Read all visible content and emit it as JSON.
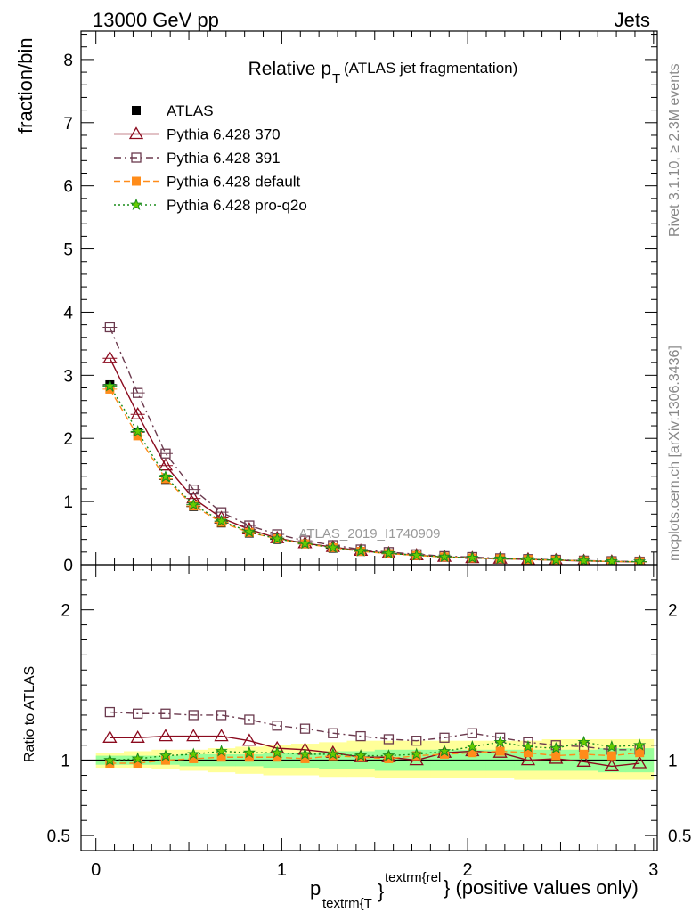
{
  "header": {
    "left": "13000 GeV pp",
    "right": "Jets"
  },
  "side_labels": {
    "top": "Rivet 3.1.10, ≥ 2.3M events",
    "bottom": "mcplots.cern.ch [arXiv:1306.3436]"
  },
  "watermark": "ATLAS_2019_I1740909",
  "chart_data": [
    {
      "type": "line",
      "panel": "main",
      "title": "Relative p",
      "title_sub": "T",
      "title_suffix": "(ATLAS jet fragmentation)",
      "ylabel": "fraction/bin",
      "xlim": [
        -0.08,
        3.02
      ],
      "ylim": [
        0,
        8.45
      ],
      "yticks": [
        0,
        1,
        2,
        3,
        4,
        5,
        6,
        7,
        8
      ],
      "legend_position": "top-left",
      "x": [
        0.075,
        0.225,
        0.375,
        0.525,
        0.675,
        0.825,
        0.975,
        1.125,
        1.275,
        1.425,
        1.575,
        1.725,
        1.875,
        2.025,
        2.175,
        2.325,
        2.475,
        2.625,
        2.775,
        2.925
      ],
      "series": [
        {
          "name": "ATLAS",
          "color": "#000000",
          "marker": "square-filled",
          "style": "none",
          "values": [
            2.85,
            2.1,
            1.35,
            0.92,
            0.66,
            0.5,
            0.4,
            0.33,
            0.26,
            0.21,
            0.175,
            0.145,
            0.12,
            0.1,
            0.09,
            0.08,
            0.07,
            0.06,
            0.052,
            0.045
          ]
        },
        {
          "name": "Pythia 6.428 370",
          "color": "#8b0a1e",
          "marker": "triangle-open",
          "style": "solid",
          "values": [
            3.27,
            2.38,
            1.57,
            1.05,
            0.74,
            0.56,
            0.42,
            0.34,
            0.28,
            0.22,
            0.18,
            0.15,
            0.125,
            0.105,
            0.095,
            0.084,
            0.071,
            0.06,
            0.05,
            0.044
          ]
        },
        {
          "name": "Pythia 6.428 391",
          "color": "#6b3a4e",
          "marker": "square-open",
          "style": "dashdot",
          "values": [
            3.76,
            2.72,
            1.76,
            1.19,
            0.83,
            0.62,
            0.48,
            0.38,
            0.31,
            0.24,
            0.2,
            0.165,
            0.135,
            0.12,
            0.1,
            0.088,
            0.077,
            0.065,
            0.056,
            0.048
          ]
        },
        {
          "name": "Pythia 6.428 default",
          "color": "#ff8c1a",
          "marker": "square-filled",
          "style": "dashed",
          "values": [
            2.78,
            2.04,
            1.36,
            0.93,
            0.67,
            0.51,
            0.41,
            0.33,
            0.27,
            0.21,
            0.175,
            0.145,
            0.122,
            0.105,
            0.094,
            0.082,
            0.071,
            0.061,
            0.051,
            0.046
          ]
        },
        {
          "name": "Pythia 6.428 pro-q2o",
          "color": "#1a8c1a",
          "marker": "star-filled",
          "style": "dotted",
          "values": [
            2.83,
            2.11,
            1.39,
            0.95,
            0.69,
            0.52,
            0.41,
            0.335,
            0.27,
            0.215,
            0.18,
            0.148,
            0.125,
            0.107,
            0.095,
            0.084,
            0.073,
            0.062,
            0.052,
            0.047
          ]
        }
      ]
    },
    {
      "type": "line",
      "panel": "ratio",
      "ylabel": "Ratio to ATLAS",
      "xlabel": "p",
      "xlabel_sub": "textrm{T",
      "xlabel_sup": "textrm{rel",
      "xlabel_brace": "}",
      "xlabel_suffix": "} (positive values only)",
      "xlim": [
        -0.08,
        3.02
      ],
      "ylim": [
        0.4,
        2.3
      ],
      "ytick_labels": [
        "0.5",
        "1",
        "2"
      ],
      "ytick_values": [
        0.5,
        1,
        2
      ],
      "xtick_labels": [
        "0",
        "1",
        "2",
        "3"
      ],
      "xtick_values": [
        0,
        1,
        2,
        3
      ],
      "bands": {
        "yellow": {
          "color": "#ffff99",
          "lo": [
            0.95,
            0.95,
            0.94,
            0.93,
            0.92,
            0.91,
            0.9,
            0.9,
            0.89,
            0.89,
            0.88,
            0.88,
            0.88,
            0.88,
            0.88,
            0.87,
            0.87,
            0.87,
            0.87,
            0.87
          ],
          "hi": [
            1.05,
            1.06,
            1.07,
            1.07,
            1.08,
            1.09,
            1.1,
            1.11,
            1.12,
            1.13,
            1.13,
            1.13,
            1.13,
            1.13,
            1.13,
            1.13,
            1.14,
            1.14,
            1.14,
            1.14
          ]
        },
        "green": {
          "color": "#99ff99",
          "lo": [
            0.97,
            0.97,
            0.97,
            0.96,
            0.96,
            0.96,
            0.95,
            0.95,
            0.94,
            0.94,
            0.93,
            0.93,
            0.93,
            0.93,
            0.93,
            0.93,
            0.93,
            0.93,
            0.92,
            0.92
          ],
          "hi": [
            1.03,
            1.03,
            1.03,
            1.04,
            1.04,
            1.04,
            1.05,
            1.05,
            1.06,
            1.06,
            1.07,
            1.07,
            1.07,
            1.07,
            1.07,
            1.07,
            1.07,
            1.07,
            1.08,
            1.08
          ]
        }
      },
      "series": [
        {
          "name": "Pythia 6.428 370",
          "color": "#8b0a1e",
          "marker": "triangle-open",
          "style": "solid",
          "values": [
            1.15,
            1.15,
            1.16,
            1.16,
            1.16,
            1.13,
            1.08,
            1.07,
            1.05,
            1.02,
            1.02,
            1.0,
            1.05,
            1.06,
            1.05,
            1.0,
            1.01,
            0.99,
            0.96,
            0.98
          ]
        },
        {
          "name": "Pythia 6.428 391",
          "color": "#6b3a4e",
          "marker": "square-open",
          "style": "dashdot",
          "values": [
            1.32,
            1.31,
            1.31,
            1.3,
            1.3,
            1.27,
            1.23,
            1.21,
            1.18,
            1.16,
            1.14,
            1.13,
            1.15,
            1.18,
            1.15,
            1.12,
            1.1,
            1.09,
            1.07,
            1.07
          ]
        },
        {
          "name": "Pythia 6.428 default",
          "color": "#ff8c1a",
          "marker": "square-filled",
          "style": "dashed",
          "values": [
            0.98,
            0.98,
            1.0,
            1.01,
            1.02,
            1.02,
            1.02,
            1.01,
            1.03,
            1.02,
            1.01,
            1.03,
            1.04,
            1.05,
            1.06,
            1.05,
            1.03,
            1.04,
            1.03,
            1.05
          ]
        },
        {
          "name": "Pythia 6.428 pro-q2o",
          "color": "#1a8c1a",
          "marker": "star-filled",
          "style": "dotted",
          "values": [
            1.0,
            1.01,
            1.03,
            1.04,
            1.06,
            1.05,
            1.05,
            1.04,
            1.04,
            1.03,
            1.03,
            1.04,
            1.06,
            1.09,
            1.12,
            1.09,
            1.08,
            1.12,
            1.09,
            1.1
          ]
        }
      ]
    }
  ]
}
